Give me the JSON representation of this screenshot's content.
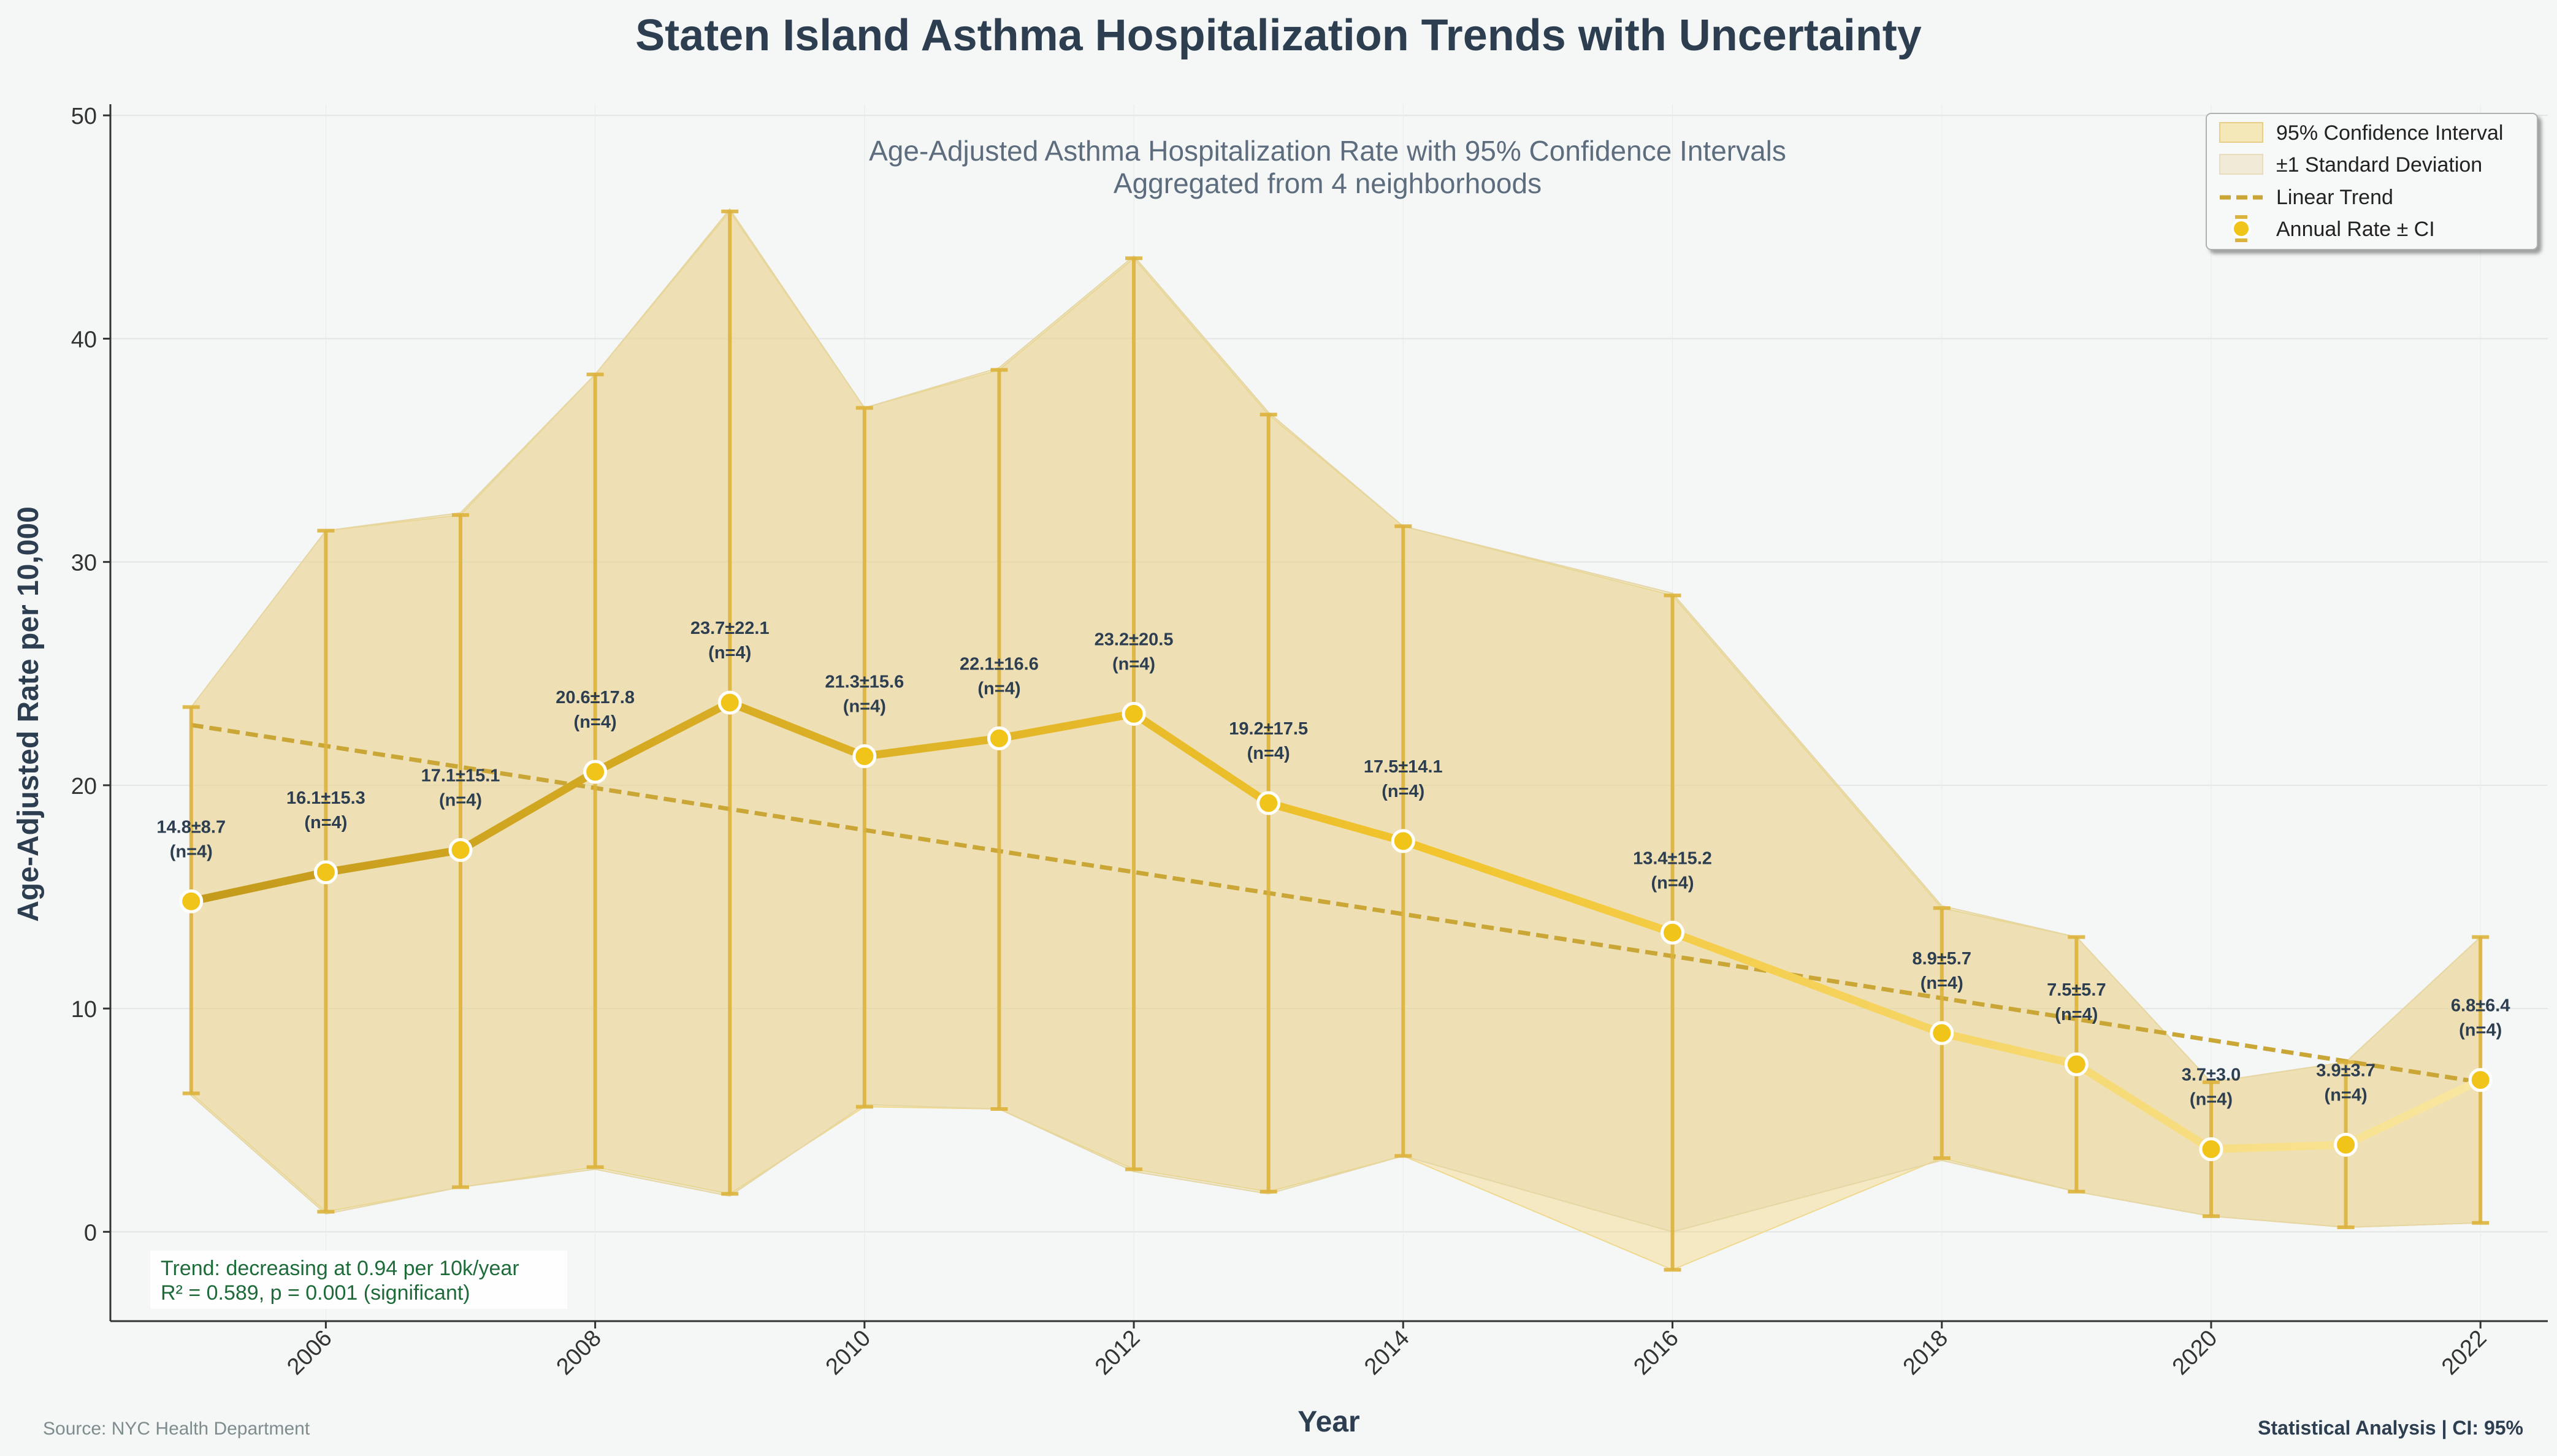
{
  "chart_data": {
    "type": "line",
    "title": "Staten Island Asthma Hospitalization Trends with Uncertainty",
    "subtitle_lines": [
      "Age-Adjusted Asthma Hospitalization Rate with 95% Confidence Intervals",
      "Aggregated from 4 neighborhoods"
    ],
    "xlabel": "Year",
    "ylabel": "Age-Adjusted Rate per 10,000",
    "xlim": [
      2004.4,
      2022.5
    ],
    "ylim": [
      -4,
      50.5
    ],
    "x_ticks": [
      2006,
      2008,
      2010,
      2012,
      2014,
      2016,
      2018,
      2020,
      2022
    ],
    "y_ticks": [
      0,
      10,
      20,
      30,
      40,
      50
    ],
    "grid": true,
    "legend_position": "top-right",
    "legend": [
      "95% Confidence Interval",
      "±1 Standard Deviation",
      "Linear Trend",
      "Annual Rate ± CI"
    ],
    "series": [
      {
        "name": "Annual Rate ± CI",
        "x": [
          2005,
          2006,
          2007,
          2008,
          2009,
          2010,
          2011,
          2012,
          2013,
          2014,
          2016,
          2018,
          2019,
          2020,
          2021,
          2022
        ],
        "y": [
          14.8,
          16.1,
          17.1,
          20.6,
          23.7,
          21.3,
          22.1,
          23.2,
          19.2,
          17.5,
          13.4,
          8.9,
          7.5,
          3.7,
          3.9,
          6.8
        ],
        "sd": [
          8.7,
          15.3,
          15.1,
          17.8,
          22.1,
          15.6,
          16.6,
          20.5,
          17.5,
          14.1,
          15.2,
          5.7,
          5.7,
          3.0,
          3.7,
          6.4
        ],
        "ci_lower": [
          6.2,
          0.9,
          2.0,
          2.9,
          1.7,
          5.6,
          5.5,
          2.8,
          1.8,
          3.4,
          -1.7,
          3.3,
          1.8,
          0.7,
          0.2,
          0.4
        ],
        "ci_upper": [
          23.5,
          31.4,
          32.1,
          38.4,
          45.7,
          36.9,
          38.6,
          43.6,
          36.6,
          31.6,
          28.5,
          14.5,
          13.2,
          6.7,
          7.6,
          13.2
        ],
        "n": [
          4,
          4,
          4,
          4,
          4,
          4,
          4,
          4,
          4,
          4,
          4,
          4,
          4,
          4,
          4,
          4
        ]
      },
      {
        "name": "Linear Trend",
        "x": [
          2005,
          2022
        ],
        "y": [
          22.7,
          6.7
        ]
      }
    ],
    "data_labels": [
      "14.8±8.7",
      "16.1±15.3",
      "17.1±15.1",
      "20.6±17.8",
      "23.7±22.1",
      "21.3±15.6",
      "22.1±16.6",
      "23.2±20.5",
      "19.2±17.5",
      "17.5±14.1",
      "13.4±15.2",
      "8.9±5.7",
      "7.5±5.7",
      "3.7±3.0",
      "3.9±3.7",
      "6.8±6.4"
    ],
    "n_label": "(n=4)",
    "annotations": {
      "trend": [
        "Trend: decreasing at 0.94 per 10k/year",
        "R² = 0.589, p = 0.001 (significant)"
      ],
      "source": "Source: NYC Health Department",
      "stats": "Statistical Analysis | CI: 95%"
    },
    "colors": {
      "line_start": "#c49a1c",
      "line_end": "#f9e18a",
      "marker": "#f0c419",
      "errorbar": "#dbb33c",
      "ci_fill": "#f2d77a",
      "sd_fill": "#e3d09a",
      "trend": "#c9a635",
      "trend_text": "#1e6b3a"
    }
  }
}
